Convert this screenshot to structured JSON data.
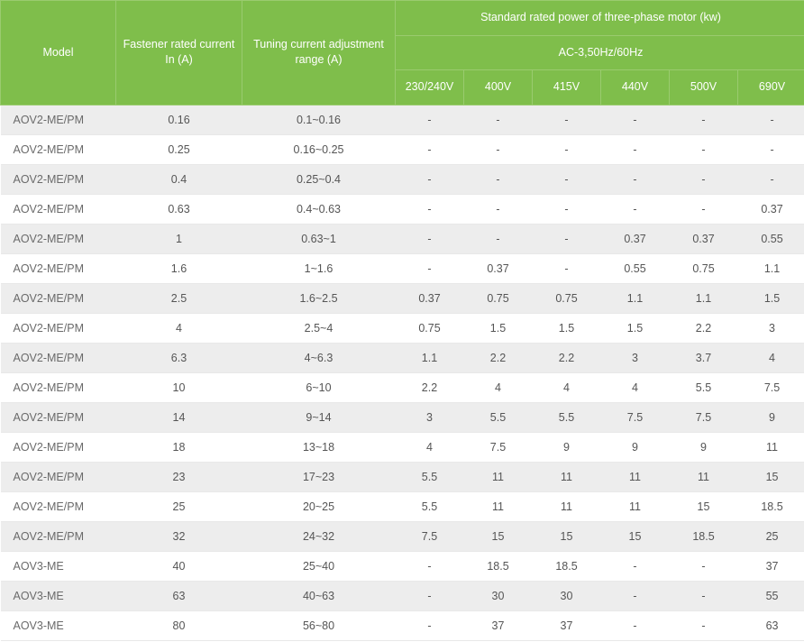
{
  "table": {
    "header": {
      "model": "Model",
      "fastener": "Fastener rated current In (A)",
      "tuning": "Tuning current adjustment range (A)",
      "group_top": "Standard rated power of three-phase motor (kw)",
      "group_mid": "AC-3,50Hz/60Hz",
      "voltages": [
        "230/240V",
        "400V",
        "415V",
        "440V",
        "500V",
        "690V"
      ]
    },
    "style": {
      "header_bg": "#7fbe4b",
      "header_border": "#9acb6f",
      "header_text": "#ffffff",
      "row_odd_bg": "#ededed",
      "row_even_bg": "#ffffff",
      "cell_text": "#555555",
      "row_border": "#e8e8e8",
      "font_size_pt": 9.5
    },
    "rows": [
      {
        "model": "AOV2-ME/PM",
        "in": "0.16",
        "tune": "0.1~0.16",
        "v": [
          "-",
          "-",
          "-",
          "-",
          "-",
          "-"
        ]
      },
      {
        "model": "AOV2-ME/PM",
        "in": "0.25",
        "tune": "0.16~0.25",
        "v": [
          "-",
          "-",
          "-",
          "-",
          "-",
          "-"
        ]
      },
      {
        "model": "AOV2-ME/PM",
        "in": "0.4",
        "tune": "0.25~0.4",
        "v": [
          "-",
          "-",
          "-",
          "-",
          "-",
          "-"
        ]
      },
      {
        "model": "AOV2-ME/PM",
        "in": "0.63",
        "tune": "0.4~0.63",
        "v": [
          "-",
          "-",
          "-",
          "-",
          "-",
          "0.37"
        ]
      },
      {
        "model": "AOV2-ME/PM",
        "in": "1",
        "tune": "0.63~1",
        "v": [
          "-",
          "-",
          "-",
          "0.37",
          "0.37",
          "0.55"
        ]
      },
      {
        "model": "AOV2-ME/PM",
        "in": "1.6",
        "tune": "1~1.6",
        "v": [
          "-",
          "0.37",
          "-",
          "0.55",
          "0.75",
          "1.1"
        ]
      },
      {
        "model": "AOV2-ME/PM",
        "in": "2.5",
        "tune": "1.6~2.5",
        "v": [
          "0.37",
          "0.75",
          "0.75",
          "1.1",
          "1.1",
          "1.5"
        ]
      },
      {
        "model": "AOV2-ME/PM",
        "in": "4",
        "tune": "2.5~4",
        "v": [
          "0.75",
          "1.5",
          "1.5",
          "1.5",
          "2.2",
          "3"
        ]
      },
      {
        "model": "AOV2-ME/PM",
        "in": "6.3",
        "tune": "4~6.3",
        "v": [
          "1.1",
          "2.2",
          "2.2",
          "3",
          "3.7",
          "4"
        ]
      },
      {
        "model": "AOV2-ME/PM",
        "in": "10",
        "tune": "6~10",
        "v": [
          "2.2",
          "4",
          "4",
          "4",
          "5.5",
          "7.5"
        ]
      },
      {
        "model": "AOV2-ME/PM",
        "in": "14",
        "tune": "9~14",
        "v": [
          "3",
          "5.5",
          "5.5",
          "7.5",
          "7.5",
          "9"
        ]
      },
      {
        "model": "AOV2-ME/PM",
        "in": "18",
        "tune": "13~18",
        "v": [
          "4",
          "7.5",
          "9",
          "9",
          "9",
          "11"
        ]
      },
      {
        "model": "AOV2-ME/PM",
        "in": "23",
        "tune": "17~23",
        "v": [
          "5.5",
          "11",
          "11",
          "11",
          "11",
          "15"
        ]
      },
      {
        "model": "AOV2-ME/PM",
        "in": "25",
        "tune": "20~25",
        "v": [
          "5.5",
          "11",
          "11",
          "11",
          "15",
          "18.5"
        ]
      },
      {
        "model": "AOV2-ME/PM",
        "in": "32",
        "tune": "24~32",
        "v": [
          "7.5",
          "15",
          "15",
          "15",
          "18.5",
          "25"
        ]
      },
      {
        "model": "AOV3-ME",
        "in": "40",
        "tune": "25~40",
        "v": [
          "-",
          "18.5",
          "18.5",
          "-",
          "-",
          "37"
        ]
      },
      {
        "model": "AOV3-ME",
        "in": "63",
        "tune": "40~63",
        "v": [
          "-",
          "30",
          "30",
          "-",
          "-",
          "55"
        ]
      },
      {
        "model": "AOV3-ME",
        "in": "80",
        "tune": "56~80",
        "v": [
          "-",
          "37",
          "37",
          "-",
          "-",
          "63"
        ]
      }
    ]
  }
}
